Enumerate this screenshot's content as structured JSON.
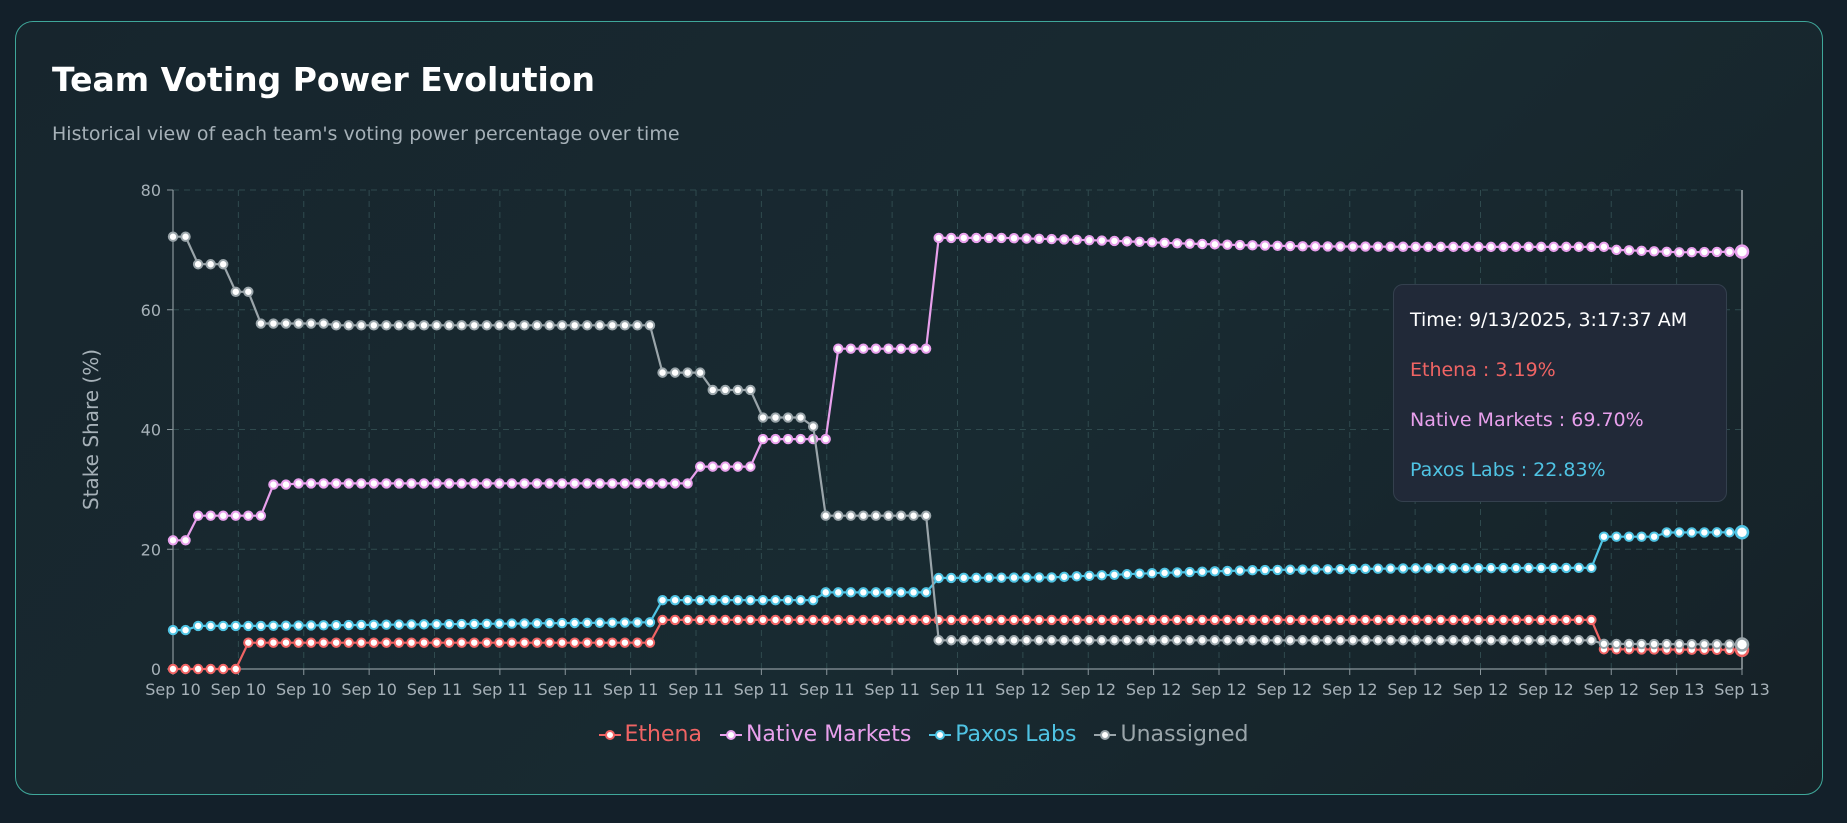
{
  "header": {
    "title": "Team Voting Power Evolution",
    "subtitle": "Historical view of each team's voting power percentage over time"
  },
  "tooltip": {
    "time": "Time: 9/13/2025, 3:17:37 AM",
    "rows": [
      {
        "label": "Ethena : 3.19%",
        "color": "#f06464"
      },
      {
        "label": "Native Markets : 69.70%",
        "color": "#e8a0ec"
      },
      {
        "label": "Paxos Labs : 22.83%",
        "color": "#4fc3e3"
      }
    ]
  },
  "chart_data": {
    "type": "line",
    "ylabel": "Stake Share (%)",
    "xlabel": "",
    "ylim": [
      0,
      80
    ],
    "yticks": [
      0,
      20,
      40,
      60,
      80
    ],
    "xtick_labels": [
      "Sep 10",
      "Sep 10",
      "Sep 10",
      "Sep 10",
      "Sep 11",
      "Sep 11",
      "Sep 11",
      "Sep 11",
      "Sep 11",
      "Sep 11",
      "Sep 11",
      "Sep 11",
      "Sep 11",
      "Sep 12",
      "Sep 12",
      "Sep 12",
      "Sep 12",
      "Sep 12",
      "Sep 12",
      "Sep 12",
      "Sep 12",
      "Sep 12",
      "Sep 12",
      "Sep 13",
      "Sep 13"
    ],
    "grid": true,
    "legend_position": "bottom",
    "point_count": 126,
    "series": [
      {
        "name": "Ethena",
        "color": "#f06464",
        "segments": [
          [
            0,
            0
          ],
          [
            5,
            0
          ],
          [
            6,
            4.4
          ],
          [
            38,
            4.4
          ],
          [
            39,
            8.2
          ],
          [
            113,
            8.2
          ],
          [
            114,
            3.3
          ],
          [
            125,
            3.19
          ]
        ]
      },
      {
        "name": "Native Markets",
        "color": "#e8a0ec",
        "segments": [
          [
            0,
            21.5
          ],
          [
            1,
            21.5
          ],
          [
            2,
            25.6
          ],
          [
            7,
            25.6
          ],
          [
            8,
            30.8
          ],
          [
            9,
            30.8
          ],
          [
            10,
            31.0
          ],
          [
            41,
            31.0
          ],
          [
            42,
            33.8
          ],
          [
            46,
            33.8
          ],
          [
            47,
            38.4
          ],
          [
            52,
            38.4
          ],
          [
            53,
            53.5
          ],
          [
            60,
            53.5
          ],
          [
            61,
            72.0
          ],
          [
            66,
            72.0
          ],
          [
            70,
            71.8
          ],
          [
            75,
            71.5
          ],
          [
            80,
            71.1
          ],
          [
            85,
            70.8
          ],
          [
            90,
            70.6
          ],
          [
            100,
            70.5
          ],
          [
            114,
            70.5
          ],
          [
            115,
            70.0
          ],
          [
            120,
            69.6
          ],
          [
            125,
            69.7
          ]
        ]
      },
      {
        "name": "Paxos Labs",
        "color": "#4fc3e3",
        "segments": [
          [
            0,
            6.5
          ],
          [
            1,
            6.5
          ],
          [
            2,
            7.2
          ],
          [
            7,
            7.2
          ],
          [
            38,
            7.8
          ],
          [
            39,
            11.5
          ],
          [
            51,
            11.5
          ],
          [
            52,
            12.8
          ],
          [
            60,
            12.8
          ],
          [
            61,
            15.2
          ],
          [
            70,
            15.3
          ],
          [
            78,
            16.0
          ],
          [
            86,
            16.5
          ],
          [
            98,
            16.8
          ],
          [
            113,
            16.9
          ],
          [
            114,
            22.1
          ],
          [
            118,
            22.1
          ],
          [
            119,
            22.8
          ],
          [
            125,
            22.83
          ]
        ]
      },
      {
        "name": "Unassigned",
        "color": "#9aa5aa",
        "segments": [
          [
            0,
            72.2
          ],
          [
            1,
            72.2
          ],
          [
            2,
            67.6
          ],
          [
            4,
            67.6
          ],
          [
            5,
            63.0
          ],
          [
            6,
            63.0
          ],
          [
            7,
            57.7
          ],
          [
            12,
            57.7
          ],
          [
            13,
            57.4
          ],
          [
            38,
            57.4
          ],
          [
            39,
            49.5
          ],
          [
            42,
            49.5
          ],
          [
            43,
            46.6
          ],
          [
            46,
            46.6
          ],
          [
            47,
            42.0
          ],
          [
            50,
            42.0
          ],
          [
            51,
            40.5
          ],
          [
            52,
            25.6
          ],
          [
            60,
            25.6
          ],
          [
            61,
            4.8
          ],
          [
            113,
            4.8
          ],
          [
            114,
            4.2
          ],
          [
            125,
            4.1
          ]
        ]
      }
    ]
  },
  "legend": {
    "items": [
      {
        "label": "Ethena",
        "color": "#f06464"
      },
      {
        "label": "Native Markets",
        "color": "#e8a0ec"
      },
      {
        "label": "Paxos Labs",
        "color": "#4fc3e3"
      },
      {
        "label": "Unassigned",
        "color": "#9aa5aa"
      }
    ]
  }
}
